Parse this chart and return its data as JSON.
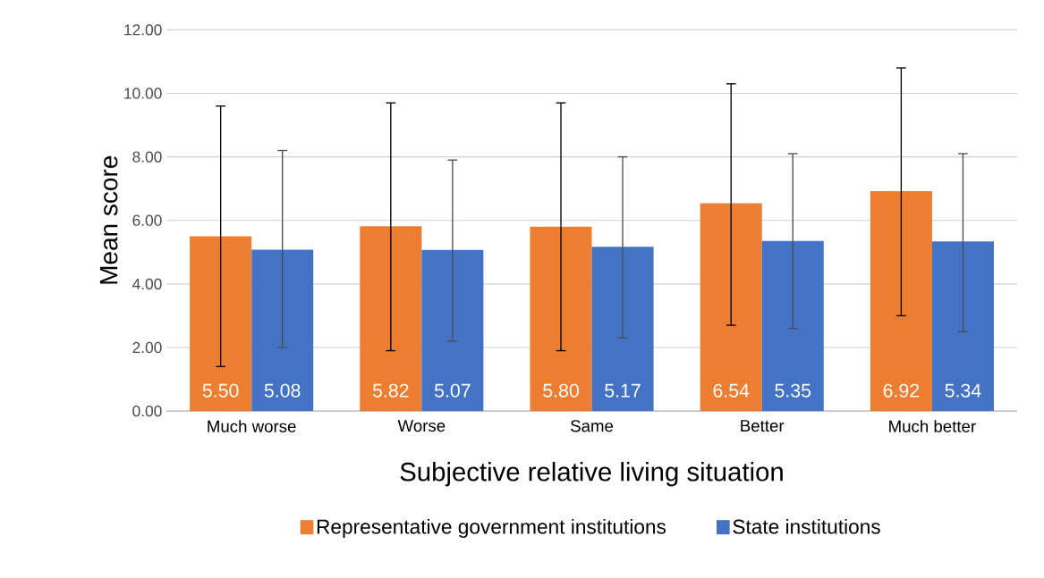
{
  "chart_data": {
    "type": "bar",
    "xlabel": "Subjective relative living situation",
    "ylabel": "Mean score",
    "categories": [
      "Much worse",
      "Worse",
      "Same",
      "Better",
      "Much better"
    ],
    "series": [
      {
        "name": "Representative government institutions",
        "color": "#ed7d31",
        "values": [
          5.5,
          5.82,
          5.8,
          6.54,
          6.92
        ],
        "value_labels": [
          "5.50",
          "5.82",
          "5.80",
          "6.54",
          "6.92"
        ],
        "errors": [
          [
            1.4,
            9.6
          ],
          [
            1.9,
            9.7
          ],
          [
            1.9,
            9.7
          ],
          [
            2.7,
            10.3
          ],
          [
            3.0,
            10.8
          ]
        ]
      },
      {
        "name": "State institutions",
        "color": "#4472c4",
        "values": [
          5.08,
          5.07,
          5.17,
          5.35,
          5.34
        ],
        "value_labels": [
          "5.08",
          "5.07",
          "5.17",
          "5.35",
          "5.34"
        ],
        "errors": [
          [
            2.0,
            8.2
          ],
          [
            2.2,
            7.9
          ],
          [
            2.3,
            8.0
          ],
          [
            2.6,
            8.1
          ],
          [
            2.5,
            8.1
          ]
        ]
      }
    ],
    "ylim": [
      0,
      12
    ],
    "yticks": [
      {
        "value": 0,
        "label": "0.00"
      },
      {
        "value": 2,
        "label": "2.00"
      },
      {
        "value": 4,
        "label": "4.00"
      },
      {
        "value": 6,
        "label": "6.00"
      },
      {
        "value": 8,
        "label": "8.00"
      },
      {
        "value": 10,
        "label": "10.00"
      },
      {
        "value": 12,
        "label": "12.00"
      }
    ],
    "grid": "y",
    "legend": "bottom"
  }
}
